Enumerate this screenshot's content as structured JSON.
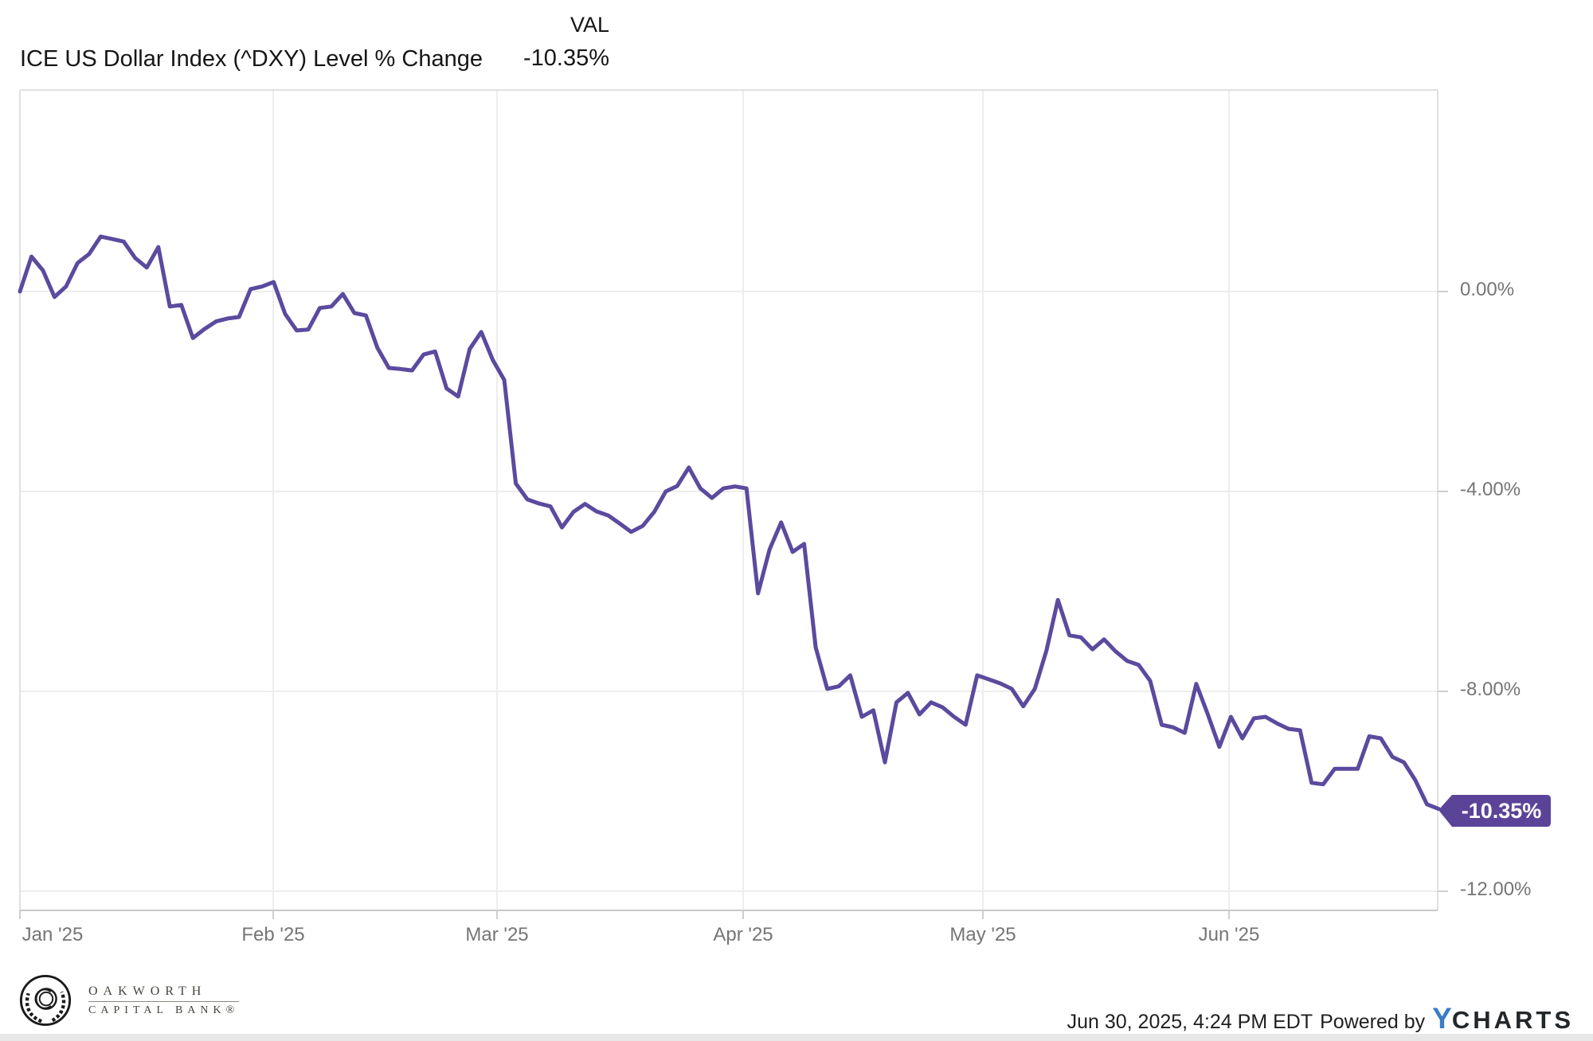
{
  "header": {
    "title": "ICE US Dollar Index (^DXY) Level % Change",
    "legend_label": "VAL",
    "legend_value": "-10.35%"
  },
  "chart_data": {
    "type": "line",
    "title": "ICE US Dollar Index (^DXY) Level % Change",
    "series": [
      {
        "name": "ICE US Dollar Index (^DXY) Level % Change",
        "unit": "%"
      }
    ],
    "x_range": [
      "Jan '25",
      "Jun 30 '25"
    ],
    "x_tick_labels": [
      "Jan '25",
      "Feb '25",
      "Mar '25",
      "Apr '25",
      "May '25",
      "Jun '25"
    ],
    "y_tick_labels": [
      "0.00%",
      "-4.00%",
      "-8.00%",
      "-12.00%"
    ],
    "y_tick_values": [
      0,
      -4,
      -8,
      -12
    ],
    "ylim": [
      -12.4,
      4.0
    ],
    "grid": true,
    "legend_position": "top-right",
    "last_value_label": "-10.35%",
    "values": [
      0.0,
      0.7,
      0.42,
      -0.11,
      0.1,
      0.57,
      0.75,
      1.1,
      1.05,
      1.0,
      0.67,
      0.48,
      0.89,
      -0.3,
      -0.27,
      -0.93,
      -0.75,
      -0.6,
      -0.54,
      -0.51,
      0.05,
      0.1,
      0.19,
      -0.45,
      -0.78,
      -0.76,
      -0.33,
      -0.3,
      -0.05,
      -0.43,
      -0.48,
      -1.13,
      -1.53,
      -1.55,
      -1.58,
      -1.26,
      -1.2,
      -1.94,
      -2.1,
      -1.15,
      -0.81,
      -1.37,
      -1.77,
      -3.84,
      -4.16,
      -4.24,
      -4.3,
      -4.72,
      -4.41,
      -4.25,
      -4.4,
      -4.48,
      -4.64,
      -4.81,
      -4.69,
      -4.41,
      -4.0,
      -3.89,
      -3.52,
      -3.94,
      -4.13,
      -3.94,
      -3.9,
      -3.94,
      -6.04,
      -5.16,
      -4.62,
      -5.21,
      -5.05,
      -7.12,
      -7.95,
      -7.9,
      -7.68,
      -8.51,
      -8.38,
      -9.42,
      -8.22,
      -8.03,
      -8.46,
      -8.22,
      -8.32,
      -8.51,
      -8.67,
      -7.68,
      -7.76,
      -7.84,
      -7.95,
      -8.3,
      -7.95,
      -7.19,
      -6.17,
      -6.88,
      -6.92,
      -7.16,
      -6.96,
      -7.2,
      -7.39,
      -7.47,
      -7.79,
      -8.67,
      -8.72,
      -8.83,
      -7.85,
      -8.46,
      -9.11,
      -8.51,
      -8.94,
      -8.54,
      -8.51,
      -8.64,
      -8.75,
      -8.78,
      -9.83,
      -9.86,
      -9.55,
      -9.55,
      -9.55,
      -8.9,
      -8.94,
      -9.31,
      -9.42,
      -9.78,
      -10.26,
      -10.35
    ]
  },
  "colors": {
    "line": "#5b4a9e",
    "badge": "#5b4398",
    "gridline": "#ededed",
    "border": "#e0e0e0",
    "axis": "#c9c9c9",
    "tick_text": "#757575",
    "ycharts_blue": "#3a7cc7"
  },
  "footer": {
    "logo_line1": "OAKWORTH",
    "logo_line2": "CAPITAL BANK®",
    "timestamp": "Jun 30, 2025, 4:24 PM EDT",
    "powered_by": "Powered by",
    "ycharts_y": "Y",
    "ycharts_rest": "CHARTS"
  }
}
